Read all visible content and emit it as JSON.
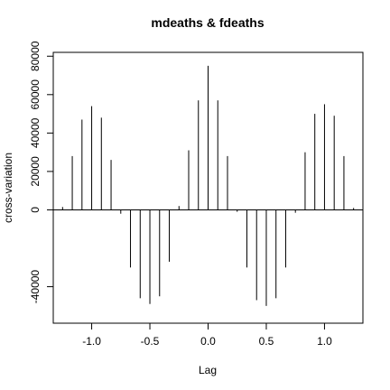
{
  "chart_data": {
    "type": "bar",
    "title": "mdeaths & fdeaths",
    "xlabel": "Lag",
    "ylabel": "cross-variation",
    "xlim": [
      -1.33,
      1.33
    ],
    "ylim": [
      -59000,
      82000
    ],
    "x_ticks": [
      -1.0,
      -0.5,
      0.0,
      0.5,
      1.0
    ],
    "x_tick_labels": [
      "-1.0",
      "-0.5",
      "0.0",
      "0.5",
      "1.0"
    ],
    "y_ticks": [
      -40000,
      0,
      20000,
      40000,
      60000,
      80000
    ],
    "y_tick_labels": [
      "-40000",
      "0",
      "20000",
      "40000",
      "60000",
      "80000"
    ],
    "horizontal_line_at": 0,
    "lags": [
      -1.25,
      -1.1667,
      -1.0833,
      -1.0,
      -0.9167,
      -0.8333,
      -0.75,
      -0.6667,
      -0.5833,
      -0.5,
      -0.4167,
      -0.3333,
      -0.25,
      -0.1667,
      -0.0833,
      0.0,
      0.0833,
      0.1667,
      0.25,
      0.3333,
      0.4167,
      0.5,
      0.5833,
      0.6667,
      0.75,
      0.8333,
      0.9167,
      1.0,
      1.0833,
      1.1667,
      1.25
    ],
    "values": [
      1500,
      28000,
      47000,
      54000,
      48000,
      26000,
      -2000,
      -30000,
      -46000,
      -49000,
      -45000,
      -27000,
      2000,
      31000,
      57000,
      75000,
      57000,
      28000,
      -1000,
      -30000,
      -47000,
      -50000,
      -46000,
      -30000,
      -1500,
      30000,
      50000,
      55000,
      49000,
      28000,
      1000
    ]
  }
}
